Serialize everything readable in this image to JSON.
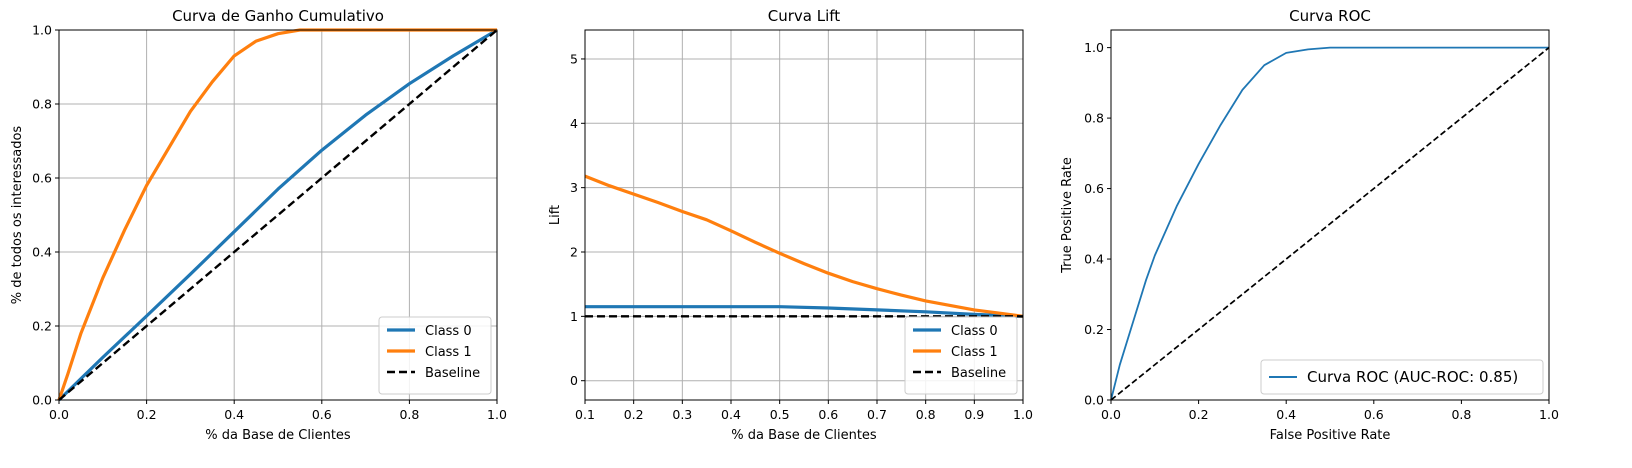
{
  "chart_data": [
    {
      "type": "line",
      "title": "Curva de Ganho Cumulativo",
      "xlabel": "% da Base de Clientes",
      "ylabel": "% de todos os interessados",
      "xlim": [
        0,
        1
      ],
      "ylim": [
        0,
        1
      ],
      "xticks": [
        "0.0",
        "0.2",
        "0.4",
        "0.6",
        "0.8",
        "1.0"
      ],
      "yticks": [
        "0.0",
        "0.2",
        "0.4",
        "0.6",
        "0.8",
        "1.0"
      ],
      "grid": true,
      "legend_position": "lower-right",
      "series": [
        {
          "name": "Class 0",
          "color": "#1f77b4",
          "style": "solid",
          "x": [
            0,
            0.1,
            0.2,
            0.3,
            0.4,
            0.5,
            0.6,
            0.7,
            0.8,
            0.9,
            1.0
          ],
          "y": [
            0,
            0.115,
            0.227,
            0.34,
            0.455,
            0.57,
            0.675,
            0.77,
            0.855,
            0.93,
            1.0
          ]
        },
        {
          "name": "Class 1",
          "color": "#ff7f0e",
          "style": "solid",
          "x": [
            0,
            0.02,
            0.05,
            0.1,
            0.15,
            0.2,
            0.25,
            0.3,
            0.35,
            0.4,
            0.45,
            0.5,
            0.55,
            0.6,
            0.8,
            1.0
          ],
          "y": [
            0,
            0.07,
            0.18,
            0.33,
            0.46,
            0.58,
            0.68,
            0.78,
            0.86,
            0.93,
            0.97,
            0.99,
            1.0,
            1.0,
            1.0,
            1.0
          ]
        },
        {
          "name": "Baseline",
          "color": "#000000",
          "style": "dashed",
          "x": [
            0,
            1
          ],
          "y": [
            0,
            1
          ]
        }
      ]
    },
    {
      "type": "line",
      "title": "Curva Lift",
      "xlabel": "% da Base de Clientes",
      "ylabel": "Lift",
      "xlim": [
        0.1,
        1.0
      ],
      "ylim": [
        -0.3,
        5.45
      ],
      "xticks": [
        "0.1",
        "0.2",
        "0.3",
        "0.4",
        "0.5",
        "0.6",
        "0.7",
        "0.8",
        "0.9",
        "1.0"
      ],
      "yticks": [
        "0",
        "1",
        "2",
        "3",
        "4",
        "5"
      ],
      "grid": true,
      "legend_position": "lower-right",
      "series": [
        {
          "name": "Class 0",
          "color": "#1f77b4",
          "style": "solid",
          "x": [
            0.1,
            0.2,
            0.3,
            0.4,
            0.5,
            0.6,
            0.7,
            0.8,
            0.9,
            1.0
          ],
          "y": [
            1.15,
            1.15,
            1.15,
            1.15,
            1.15,
            1.13,
            1.1,
            1.07,
            1.03,
            1.0
          ]
        },
        {
          "name": "Class 1",
          "color": "#ff7f0e",
          "style": "solid",
          "x": [
            0.1,
            0.15,
            0.2,
            0.25,
            0.3,
            0.35,
            0.4,
            0.45,
            0.5,
            0.55,
            0.6,
            0.65,
            0.7,
            0.75,
            0.8,
            0.85,
            0.9,
            0.95,
            1.0
          ],
          "y": [
            3.18,
            3.03,
            2.9,
            2.77,
            2.63,
            2.5,
            2.33,
            2.15,
            1.98,
            1.82,
            1.67,
            1.54,
            1.43,
            1.33,
            1.24,
            1.17,
            1.1,
            1.05,
            1.0
          ]
        },
        {
          "name": "Baseline",
          "color": "#000000",
          "style": "dashed",
          "x": [
            0.1,
            1.0
          ],
          "y": [
            1,
            1
          ]
        }
      ]
    },
    {
      "type": "line",
      "title": "Curva ROC",
      "xlabel": "False Positive Rate",
      "ylabel": "True Positive Rate",
      "xlim": [
        0,
        1
      ],
      "ylim": [
        0,
        1.05
      ],
      "xticks": [
        "0.0",
        "0.2",
        "0.4",
        "0.6",
        "0.8",
        "1.0"
      ],
      "yticks": [
        "0.0",
        "0.2",
        "0.4",
        "0.6",
        "0.8",
        "1.0"
      ],
      "grid": false,
      "legend_position": "lower-right",
      "series": [
        {
          "name": "Curva ROC (AUC-ROC: 0.85)",
          "color": "#1f77b4",
          "style": "solid",
          "x": [
            0,
            0.02,
            0.05,
            0.08,
            0.1,
            0.15,
            0.2,
            0.25,
            0.3,
            0.35,
            0.4,
            0.45,
            0.5,
            0.6,
            0.8,
            1.0
          ],
          "y": [
            0,
            0.1,
            0.22,
            0.34,
            0.41,
            0.55,
            0.67,
            0.78,
            0.88,
            0.95,
            0.985,
            0.995,
            1.0,
            1.0,
            1.0,
            1.0
          ]
        },
        {
          "name": "",
          "color": "#000000",
          "style": "dashed",
          "in_legend": false,
          "x": [
            0,
            1
          ],
          "y": [
            0,
            1
          ]
        }
      ]
    }
  ]
}
